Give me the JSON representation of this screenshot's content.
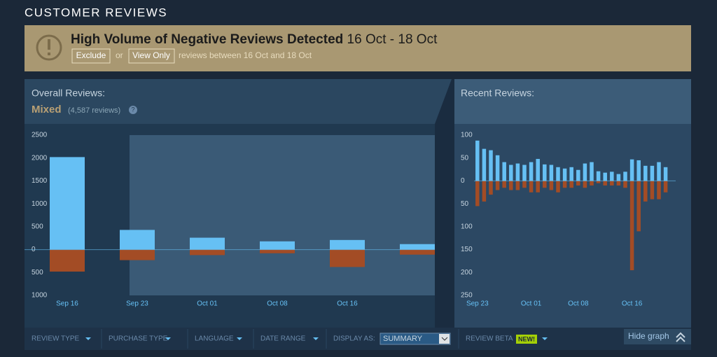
{
  "header": {
    "title": "CUSTOMER REVIEWS"
  },
  "banner": {
    "title": "High Volume of Negative Reviews Detected",
    "dates": "16 Oct - 18 Oct",
    "exclude": "Exclude",
    "or": "or",
    "view_only": "View Only",
    "note": "reviews between 16 Oct and 18 Oct"
  },
  "overall": {
    "label": "Overall Reviews:",
    "rating": "Mixed",
    "count": "(4,587 reviews)",
    "help": "?"
  },
  "recent": {
    "label": "Recent Reviews:"
  },
  "chart_data": [
    {
      "type": "bar",
      "categories": [
        "Sep 16",
        "Sep 23",
        "Oct 01",
        "Oct 08",
        "Oct 16",
        null
      ],
      "series": [
        {
          "color": "#66c0f4",
          "values": [
            2020,
            430,
            260,
            180,
            210,
            120
          ]
        },
        {
          "color": "#a34c25",
          "values": [
            -480,
            -230,
            -120,
            -80,
            -380,
            -110
          ]
        }
      ],
      "ylim": [
        -1000,
        2500
      ],
      "yticks": [
        2500,
        2000,
        1500,
        1000,
        500,
        0,
        {
          "value": -500,
          "label": "500"
        },
        {
          "value": -1000,
          "label": "1000"
        }
      ]
    },
    {
      "type": "bar",
      "categories": [
        "Sep 23",
        null,
        null,
        null,
        null,
        null,
        null,
        null,
        "Oct 01",
        null,
        null,
        null,
        null,
        null,
        null,
        "Oct 08",
        null,
        null,
        null,
        null,
        null,
        null,
        null,
        "Oct 16",
        null,
        null,
        null,
        null,
        null
      ],
      "series": [
        {
          "color": "#66c0f4",
          "values": [
            88,
            70,
            67,
            56,
            41,
            35,
            38,
            35,
            41,
            48,
            36,
            35,
            30,
            27,
            30,
            24,
            38,
            41,
            21,
            18,
            20,
            15,
            20,
            47,
            45,
            33,
            33,
            41,
            30
          ]
        },
        {
          "color": "#a34c25",
          "values": [
            -55,
            -45,
            -30,
            -20,
            -15,
            -20,
            -20,
            -15,
            -25,
            -25,
            -15,
            -20,
            -25,
            -15,
            -15,
            -10,
            -15,
            -10,
            -5,
            -10,
            -10,
            -10,
            -15,
            -195,
            -110,
            -45,
            -40,
            -40,
            -25
          ]
        }
      ],
      "ylim": [
        -250,
        100
      ],
      "yticks": [
        100,
        50,
        0,
        {
          "value": -50,
          "label": "50"
        },
        {
          "value": -100,
          "label": "100"
        },
        {
          "value": -150,
          "label": "150"
        },
        {
          "value": -200,
          "label": "200"
        },
        {
          "value": -250,
          "label": "250"
        }
      ]
    }
  ],
  "filters": {
    "items": [
      "REVIEW TYPE",
      "PURCHASE TYPE",
      "LANGUAGE",
      "DATE RANGE"
    ],
    "display_as": "DISPLAY AS:",
    "display_value": "SUMMARY",
    "beta": "REVIEW BETA",
    "new": "NEW!",
    "hide": "Hide graph"
  }
}
